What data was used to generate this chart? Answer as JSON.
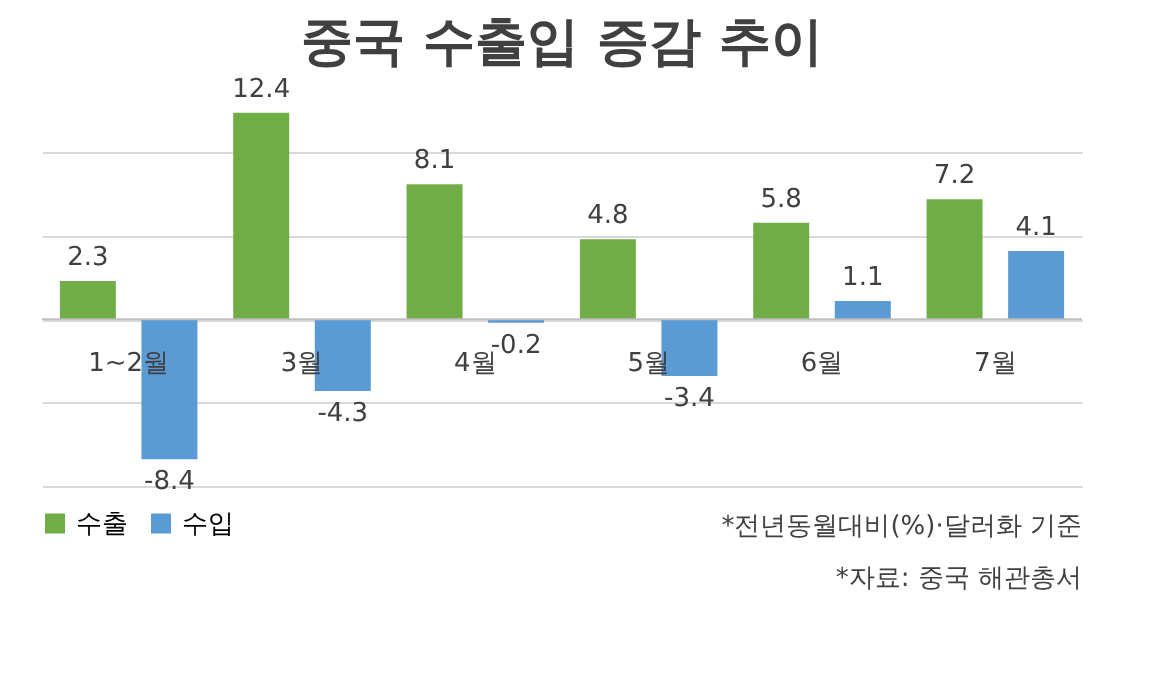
{
  "chart_data": {
    "type": "bar",
    "title": "중국 수출입 증감 추이",
    "categories": [
      "1~2월",
      "3월",
      "4월",
      "5월",
      "6월",
      "7월"
    ],
    "series": [
      {
        "name": "수출",
        "color": "#70ad47",
        "values": [
          2.3,
          12.4,
          8.1,
          4.8,
          5.8,
          7.2
        ]
      },
      {
        "name": "수입",
        "color": "#5b9bd5",
        "values": [
          -8.4,
          -4.3,
          -0.2,
          -3.4,
          1.1,
          4.1
        ]
      }
    ],
    "grid": "y",
    "tick_labels": "x",
    "data_labels": true,
    "legend": "bottom left",
    "annotations": [
      "*전년동월대비(%)·달러화 기준",
      "*자료: 중국 해관총서"
    ]
  }
}
